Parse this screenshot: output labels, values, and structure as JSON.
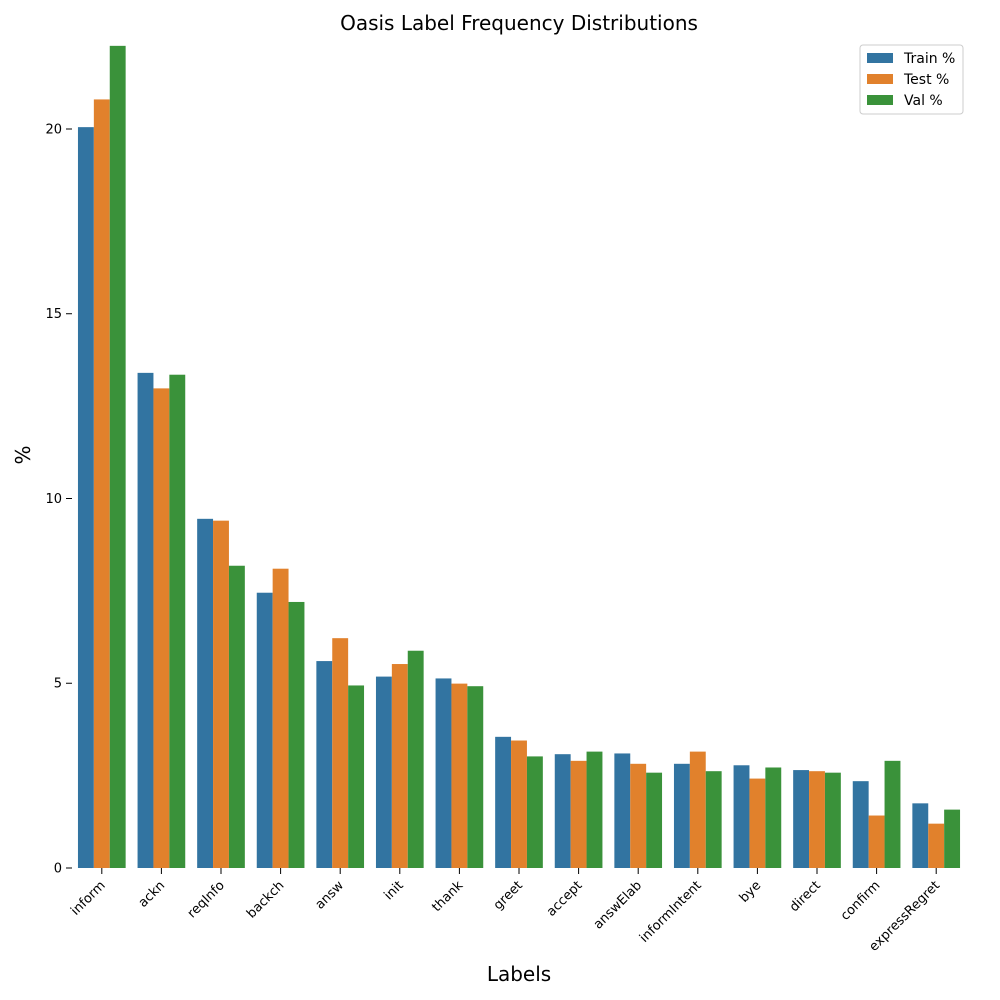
{
  "chart_data": {
    "type": "bar",
    "title": "Oasis Label Frequency Distributions",
    "xlabel": "Labels",
    "ylabel": "%",
    "ylim": [
      0,
      22.3
    ],
    "yticks": [
      0,
      5,
      10,
      15,
      20
    ],
    "grid": false,
    "legend_position": "top-right",
    "categories": [
      "inform",
      "ackn",
      "reqInfo",
      "backch",
      "answ",
      "init",
      "thank",
      "greet",
      "accept",
      "answElab",
      "informIntent",
      "bye",
      "direct",
      "confirm",
      "expressRegret"
    ],
    "series": [
      {
        "name": "Train %",
        "color": "#3274a1",
        "values": [
          20.05,
          13.4,
          9.45,
          7.45,
          5.6,
          5.18,
          5.13,
          3.55,
          3.08,
          3.1,
          2.82,
          2.78,
          2.65,
          2.35,
          1.75
        ]
      },
      {
        "name": "Test %",
        "color": "#e1812c",
        "values": [
          20.8,
          12.98,
          9.4,
          8.1,
          6.22,
          5.52,
          4.99,
          3.45,
          2.9,
          2.82,
          3.15,
          2.42,
          2.62,
          1.42,
          1.2
        ]
      },
      {
        "name": "Val %",
        "color": "#3a923a",
        "values": [
          22.25,
          13.35,
          8.18,
          7.2,
          4.94,
          5.88,
          4.92,
          3.02,
          3.15,
          2.58,
          2.62,
          2.72,
          2.58,
          2.9,
          1.58
        ]
      }
    ]
  }
}
